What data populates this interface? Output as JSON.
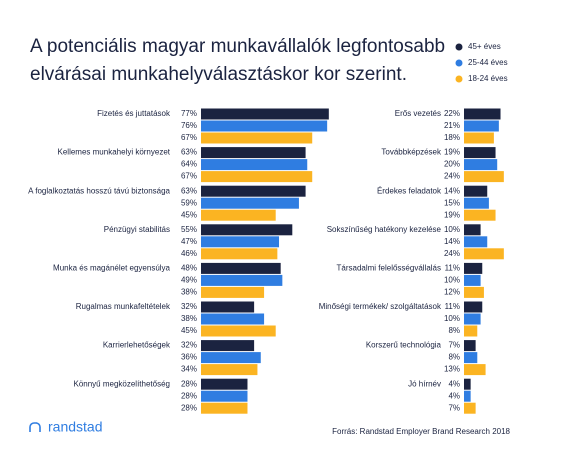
{
  "header": {
    "title_lines": [
      "A potenciális magyar munkavállalók legfontosabb",
      "elvárásai  munkahelyválasztáskor kor szerint."
    ]
  },
  "chart_data": [
    {
      "type": "hbar",
      "categories": [
        "Fizetés és juttatások",
        "Kellemes munkahelyi környezet",
        "A foglalkoztatás hosszú távú biztonsága",
        "Pénzügyi stabilitás",
        "Munka és magánélet egyensúlya",
        "Rugalmas munkafeltételek",
        "Karrierlehetőségek",
        "Könnyű megközelíthetőség"
      ],
      "series": [
        {
          "name": "45+ éves",
          "color": "#1b2340",
          "values": [
            77,
            63,
            63,
            55,
            48,
            32,
            32,
            28
          ],
          "value_labels": [
            "77%",
            "63%",
            "63%",
            "55%",
            "48%",
            "32%",
            "32%",
            "28%"
          ]
        },
        {
          "name": "25-44 éves",
          "color": "#2f7de1",
          "values": [
            76,
            64,
            59,
            47,
            49,
            38,
            36,
            28
          ],
          "value_labels": [
            "76%",
            "64%",
            "59%",
            "47%",
            "49%",
            "38%",
            "36%",
            "28%"
          ]
        },
        {
          "name": "18-24 éves",
          "color": "#fbb422",
          "values": [
            67,
            67,
            45,
            46,
            38,
            45,
            34,
            28
          ],
          "value_labels": [
            "67%",
            "67%",
            "45%",
            "46%",
            "38%",
            "45%",
            "34%",
            "28%"
          ]
        }
      ]
    },
    {
      "type": "hbar",
      "categories": [
        "Erős vezetés",
        "Továbbképzések",
        "Érdekes feladatok",
        "Sokszínűség hatékony kezelése",
        "Társadalmi felelősségvállalás",
        "Minőségi termékek/ szolgáltatások",
        "Korszerű technológia",
        "Jó hírnév"
      ],
      "series": [
        {
          "color": "#1b2340",
          "values": [
            22,
            19,
            14,
            10,
            11,
            11,
            7,
            4
          ],
          "value_labels": [
            "22%",
            "19%",
            "14%",
            "10%",
            "11%",
            "11%",
            "7%",
            "4%"
          ]
        },
        {
          "color": "#2f7de1",
          "values": [
            21,
            20,
            15,
            14,
            10,
            10,
            8,
            4
          ],
          "value_labels": [
            "21%",
            "20%",
            "15%",
            "14%",
            "10%",
            "10%",
            "8%",
            "4%"
          ]
        },
        {
          "color": "#fbb422",
          "values": [
            18,
            24,
            19,
            24,
            12,
            8,
            13,
            7
          ],
          "value_labels": [
            "18%",
            "24%",
            "19%",
            "24%",
            "12%",
            "8%",
            "13%",
            "7%"
          ]
        }
      ]
    }
  ],
  "footer": {
    "logo": "randstad",
    "source": "Forrás: Randstad Employer Brand Research 2018"
  }
}
